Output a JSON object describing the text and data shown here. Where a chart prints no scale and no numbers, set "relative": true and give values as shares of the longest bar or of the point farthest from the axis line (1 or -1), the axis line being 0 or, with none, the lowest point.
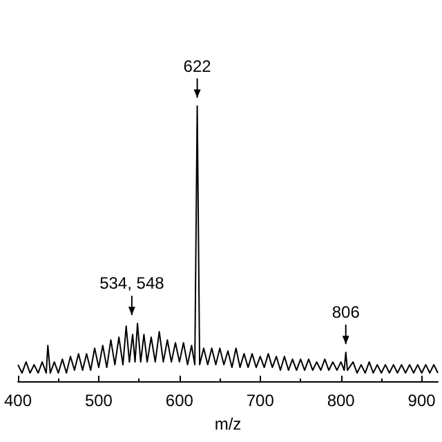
{
  "chart_data": {
    "type": "line",
    "relative": true,
    "xlabel": "m/z",
    "xlim": [
      400,
      920
    ],
    "xticks": [
      400,
      500,
      600,
      700,
      800,
      900
    ],
    "grid": false,
    "marker": "none",
    "line_style": "solid",
    "annotations": [
      {
        "text": "622",
        "x": 622,
        "y": 1
      },
      {
        "text": "534, 548",
        "x": 541,
        "y": 0.21
      },
      {
        "text": "806",
        "x": 806,
        "y": 0.105
      }
    ],
    "series": [
      {
        "color": "#000000",
        "x": [
          400,
          405,
          410,
          415,
          420,
          425,
          430,
          435,
          437,
          440,
          445,
          450,
          455,
          460,
          465,
          470,
          475,
          480,
          485,
          490,
          495,
          500,
          505,
          510,
          515,
          520,
          525,
          530,
          534,
          538,
          542,
          545,
          548,
          552,
          556,
          560,
          565,
          570,
          575,
          580,
          585,
          590,
          595,
          600,
          605,
          610,
          615,
          619,
          622,
          625,
          630,
          635,
          640,
          645,
          650,
          655,
          660,
          665,
          670,
          675,
          680,
          685,
          690,
          695,
          700,
          705,
          710,
          715,
          720,
          725,
          730,
          735,
          740,
          745,
          750,
          755,
          760,
          765,
          770,
          775,
          780,
          785,
          790,
          795,
          800,
          804,
          806,
          808,
          815,
          820,
          825,
          830,
          835,
          840,
          845,
          850,
          855,
          860,
          865,
          870,
          875,
          880,
          885,
          890,
          895,
          900,
          905,
          910,
          915,
          920
        ],
        "values": [
          0.06,
          0.03,
          0.07,
          0.03,
          0.06,
          0.03,
          0.07,
          0.03,
          0.13,
          0.03,
          0.07,
          0.03,
          0.08,
          0.03,
          0.09,
          0.04,
          0.1,
          0.04,
          0.1,
          0.04,
          0.12,
          0.05,
          0.13,
          0.05,
          0.15,
          0.06,
          0.16,
          0.06,
          0.2,
          0.07,
          0.17,
          0.07,
          0.21,
          0.07,
          0.17,
          0.07,
          0.16,
          0.07,
          0.18,
          0.07,
          0.15,
          0.07,
          0.14,
          0.07,
          0.14,
          0.06,
          0.13,
          0.06,
          1,
          0.06,
          0.12,
          0.06,
          0.12,
          0.06,
          0.12,
          0.06,
          0.11,
          0.05,
          0.12,
          0.05,
          0.1,
          0.05,
          0.1,
          0.05,
          0.09,
          0.05,
          0.1,
          0.05,
          0.09,
          0.04,
          0.09,
          0.04,
          0.08,
          0.04,
          0.08,
          0.04,
          0.08,
          0.04,
          0.07,
          0.04,
          0.08,
          0.04,
          0.07,
          0.04,
          0.07,
          0.04,
          0.105,
          0.04,
          0.07,
          0.03,
          0.06,
          0.03,
          0.07,
          0.03,
          0.06,
          0.03,
          0.06,
          0.03,
          0.06,
          0.03,
          0.06,
          0.03,
          0.06,
          0.03,
          0.06,
          0.03,
          0.06,
          0.03,
          0.06,
          0.03
        ]
      }
    ]
  }
}
